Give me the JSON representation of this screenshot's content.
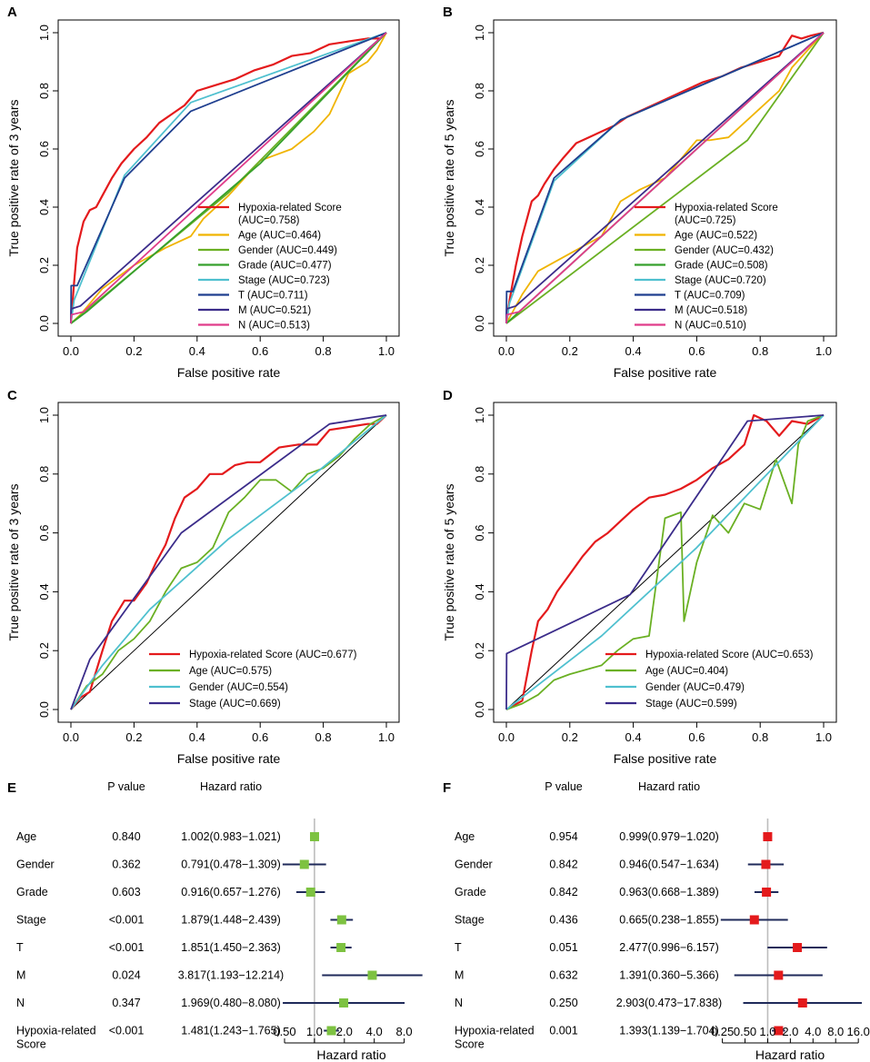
{
  "figure": {
    "panel_labels": [
      "A",
      "B",
      "C",
      "D",
      "E",
      "F"
    ]
  },
  "chart_data": [
    {
      "panel": "A",
      "type": "line",
      "xlabel": "False positive rate",
      "ylabel": "True positive rate of 3 years",
      "xlim": [
        0,
        1
      ],
      "ylim": [
        0,
        1
      ],
      "x_ticks": [
        "0.0",
        "0.2",
        "0.4",
        "0.6",
        "0.8",
        "1.0"
      ],
      "y_ticks": [
        "0.0",
        "0.2",
        "0.4",
        "0.6",
        "0.8",
        "1.0"
      ],
      "legend_position": "bottom-right",
      "series": [
        {
          "name": "Hypoxia-related Score",
          "auc_label": "(AUC=0.758)",
          "color": "#e41a1c",
          "x": [
            0,
            0.01,
            0.02,
            0.04,
            0.06,
            0.08,
            0.1,
            0.13,
            0.16,
            0.2,
            0.24,
            0.28,
            0.32,
            0.36,
            0.4,
            0.46,
            0.52,
            0.58,
            0.64,
            0.7,
            0.76,
            0.82,
            0.88,
            0.94,
            0.98,
            1
          ],
          "y": [
            0,
            0.14,
            0.26,
            0.35,
            0.39,
            0.4,
            0.44,
            0.5,
            0.55,
            0.6,
            0.64,
            0.69,
            0.72,
            0.75,
            0.8,
            0.82,
            0.84,
            0.87,
            0.89,
            0.92,
            0.93,
            0.96,
            0.97,
            0.98,
            0.98,
            1
          ]
        },
        {
          "name": "Age",
          "auc_label": "(AUC=0.464)",
          "color": "#f0b400",
          "x": [
            0,
            0.03,
            0.1,
            0.2,
            0.3,
            0.38,
            0.42,
            0.5,
            0.6,
            0.7,
            0.77,
            0.82,
            0.88,
            0.94,
            0.97,
            1
          ],
          "y": [
            0,
            0.03,
            0.12,
            0.2,
            0.26,
            0.3,
            0.36,
            0.44,
            0.56,
            0.6,
            0.66,
            0.72,
            0.86,
            0.9,
            0.94,
            1
          ]
        },
        {
          "name": "Gender",
          "auc_label": "(AUC=0.449)",
          "color": "#6ab023",
          "x": [
            0,
            0.5,
            1
          ],
          "y": [
            0,
            0.45,
            1
          ]
        },
        {
          "name": "Grade",
          "auc_label": "(AUC=0.477)",
          "color": "#36a02c",
          "x": [
            0,
            0.05,
            0.6,
            1
          ],
          "y": [
            0,
            0.04,
            0.55,
            1
          ]
        },
        {
          "name": "Stage",
          "auc_label": "(AUC=0.723)",
          "color": "#4fc0cf",
          "x": [
            0,
            0.01,
            0.17,
            0.38,
            1
          ],
          "y": [
            0,
            0.08,
            0.51,
            0.76,
            1
          ]
        },
        {
          "name": "T",
          "auc_label": "(AUC=0.711)",
          "color": "#1f3f8f",
          "x": [
            0,
            0.001,
            0.02,
            0.17,
            0.38,
            1
          ],
          "y": [
            0,
            0.13,
            0.13,
            0.5,
            0.73,
            1
          ]
        },
        {
          "name": "M",
          "auc_label": "(AUC=0.521)",
          "color": "#3b2c8a",
          "x": [
            0,
            0.001,
            0.03,
            1
          ],
          "y": [
            0,
            0.05,
            0.06,
            1
          ]
        },
        {
          "name": "N",
          "auc_label": "(AUC=0.513)",
          "color": "#e03c8a",
          "x": [
            0,
            0.002,
            0.04,
            1
          ],
          "y": [
            0,
            0.03,
            0.04,
            1
          ]
        }
      ]
    },
    {
      "panel": "B",
      "type": "line",
      "xlabel": "False positive rate",
      "ylabel": "True positive rate of 5 years",
      "xlim": [
        0,
        1
      ],
      "ylim": [
        0,
        1
      ],
      "x_ticks": [
        "0.0",
        "0.2",
        "0.4",
        "0.6",
        "0.8",
        "1.0"
      ],
      "y_ticks": [
        "0.0",
        "0.2",
        "0.4",
        "0.6",
        "0.8",
        "1.0"
      ],
      "legend_position": "bottom-right",
      "series": [
        {
          "name": "Hypoxia-related Score",
          "auc_label": "(AUC=0.725)",
          "color": "#e41a1c",
          "x": [
            0,
            0.01,
            0.03,
            0.05,
            0.08,
            0.1,
            0.12,
            0.15,
            0.18,
            0.22,
            0.26,
            0.3,
            0.34,
            0.38,
            0.44,
            0.5,
            0.56,
            0.62,
            0.68,
            0.74,
            0.8,
            0.86,
            0.9,
            0.93,
            0.96,
            1
          ],
          "y": [
            0,
            0.08,
            0.2,
            0.3,
            0.42,
            0.44,
            0.48,
            0.53,
            0.57,
            0.62,
            0.64,
            0.66,
            0.68,
            0.71,
            0.74,
            0.77,
            0.8,
            0.83,
            0.85,
            0.88,
            0.9,
            0.92,
            0.99,
            0.98,
            0.99,
            1
          ]
        },
        {
          "name": "Age",
          "auc_label": "(AUC=0.522)",
          "color": "#f0b400",
          "x": [
            0,
            0.05,
            0.1,
            0.2,
            0.3,
            0.36,
            0.42,
            0.5,
            0.6,
            0.64,
            0.7,
            0.8,
            0.86,
            0.9,
            0.95,
            1
          ],
          "y": [
            0,
            0.1,
            0.18,
            0.24,
            0.3,
            0.42,
            0.46,
            0.5,
            0.63,
            0.63,
            0.64,
            0.74,
            0.8,
            0.88,
            0.94,
            1
          ]
        },
        {
          "name": "Gender",
          "auc_label": "(AUC=0.432)",
          "color": "#6ab023",
          "x": [
            0,
            0.76,
            1
          ],
          "y": [
            0,
            0.63,
            1
          ]
        },
        {
          "name": "Grade",
          "auc_label": "(AUC=0.508)",
          "color": "#36a02c",
          "x": [
            0,
            0.05,
            0.6,
            1
          ],
          "y": [
            0,
            0.05,
            0.6,
            1
          ]
        },
        {
          "name": "Stage",
          "auc_label": "(AUC=0.720)",
          "color": "#4fc0cf",
          "x": [
            0,
            0.01,
            0.15,
            0.36,
            1
          ],
          "y": [
            0,
            0.07,
            0.49,
            0.7,
            1
          ]
        },
        {
          "name": "T",
          "auc_label": "(AUC=0.709)",
          "color": "#1f3f8f",
          "x": [
            0,
            0.001,
            0.02,
            0.15,
            0.36,
            1
          ],
          "y": [
            0,
            0.11,
            0.11,
            0.5,
            0.7,
            1
          ]
        },
        {
          "name": "M",
          "auc_label": "(AUC=0.518)",
          "color": "#3b2c8a",
          "x": [
            0,
            0.001,
            0.03,
            1
          ],
          "y": [
            0,
            0.05,
            0.06,
            1
          ]
        },
        {
          "name": "N",
          "auc_label": "(AUC=0.510)",
          "color": "#e03c8a",
          "x": [
            0,
            0.002,
            0.04,
            1
          ],
          "y": [
            0,
            0.03,
            0.04,
            1
          ]
        }
      ]
    },
    {
      "panel": "C",
      "type": "line",
      "xlabel": "False positive rate",
      "ylabel": "True positive rate of 3 years",
      "xlim": [
        0,
        1
      ],
      "ylim": [
        0,
        1
      ],
      "x_ticks": [
        "0.0",
        "0.2",
        "0.4",
        "0.6",
        "0.8",
        "1.0"
      ],
      "y_ticks": [
        "0.0",
        "0.2",
        "0.4",
        "0.6",
        "0.8",
        "1.0"
      ],
      "legend_position": "bottom-right",
      "series": [
        {
          "name": "Hypoxia-related Score",
          "auc_label": "(AUC=0.677)",
          "color": "#e41a1c",
          "x": [
            0,
            0.03,
            0.06,
            0.1,
            0.13,
            0.17,
            0.2,
            0.24,
            0.27,
            0.3,
            0.33,
            0.36,
            0.4,
            0.44,
            0.48,
            0.52,
            0.56,
            0.6,
            0.66,
            0.72,
            0.78,
            0.82,
            0.88,
            0.94,
            0.97,
            1
          ],
          "y": [
            0,
            0.04,
            0.06,
            0.2,
            0.3,
            0.37,
            0.37,
            0.43,
            0.5,
            0.56,
            0.65,
            0.72,
            0.75,
            0.8,
            0.8,
            0.83,
            0.84,
            0.84,
            0.89,
            0.9,
            0.9,
            0.95,
            0.96,
            0.97,
            0.97,
            1
          ]
        },
        {
          "name": "Age",
          "auc_label": "(AUC=0.575)",
          "color": "#6ab023",
          "x": [
            0,
            0.05,
            0.1,
            0.15,
            0.2,
            0.25,
            0.3,
            0.35,
            0.4,
            0.45,
            0.5,
            0.55,
            0.6,
            0.65,
            0.7,
            0.75,
            0.8,
            0.85,
            0.9,
            0.95,
            1
          ],
          "y": [
            0,
            0.08,
            0.12,
            0.2,
            0.24,
            0.3,
            0.4,
            0.48,
            0.5,
            0.55,
            0.67,
            0.72,
            0.78,
            0.78,
            0.74,
            0.8,
            0.82,
            0.86,
            0.92,
            0.97,
            1
          ]
        },
        {
          "name": "Gender",
          "auc_label": "(AUC=0.554)",
          "color": "#4fc0cf",
          "x": [
            0,
            0.1,
            0.25,
            0.5,
            0.75,
            1
          ],
          "y": [
            0,
            0.15,
            0.34,
            0.58,
            0.78,
            1
          ]
        },
        {
          "name": "Stage",
          "auc_label": "(AUC=0.669)",
          "color": "#3b2c8a",
          "x": [
            0,
            0.06,
            0.35,
            0.82,
            1
          ],
          "y": [
            0,
            0.17,
            0.6,
            0.97,
            1
          ]
        }
      ]
    },
    {
      "panel": "D",
      "type": "line",
      "xlabel": "False positive rate",
      "ylabel": "True positive rate of 5 years",
      "xlim": [
        0,
        1
      ],
      "ylim": [
        0,
        1
      ],
      "x_ticks": [
        "0.0",
        "0.2",
        "0.4",
        "0.6",
        "0.8",
        "1.0"
      ],
      "y_ticks": [
        "0.0",
        "0.2",
        "0.4",
        "0.6",
        "0.8",
        "1.0"
      ],
      "legend_position": "bottom-right",
      "series": [
        {
          "name": "Hypoxia-related Score",
          "auc_label": "(AUC=0.653)",
          "color": "#e41a1c",
          "x": [
            0,
            0.05,
            0.08,
            0.1,
            0.13,
            0.16,
            0.2,
            0.24,
            0.28,
            0.32,
            0.36,
            0.4,
            0.45,
            0.5,
            0.55,
            0.6,
            0.65,
            0.7,
            0.75,
            0.78,
            0.82,
            0.86,
            0.9,
            0.95,
            1
          ],
          "y": [
            0,
            0.03,
            0.2,
            0.3,
            0.34,
            0.4,
            0.46,
            0.52,
            0.57,
            0.6,
            0.64,
            0.68,
            0.72,
            0.73,
            0.75,
            0.78,
            0.82,
            0.85,
            0.9,
            1.0,
            0.98,
            0.93,
            0.98,
            0.97,
            1
          ]
        },
        {
          "name": "Age",
          "auc_label": "(AUC=0.404)",
          "color": "#6ab023",
          "x": [
            0,
            0.05,
            0.1,
            0.15,
            0.2,
            0.3,
            0.35,
            0.4,
            0.45,
            0.5,
            0.55,
            0.56,
            0.6,
            0.65,
            0.7,
            0.75,
            0.8,
            0.85,
            0.9,
            0.92,
            0.95,
            1
          ],
          "y": [
            0,
            0.02,
            0.05,
            0.1,
            0.12,
            0.15,
            0.2,
            0.24,
            0.25,
            0.65,
            0.67,
            0.3,
            0.5,
            0.66,
            0.6,
            0.7,
            0.68,
            0.85,
            0.7,
            0.9,
            0.98,
            1
          ]
        },
        {
          "name": "Gender",
          "auc_label": "(AUC=0.479)",
          "color": "#4fc0cf",
          "x": [
            0,
            0.3,
            0.6,
            1
          ],
          "y": [
            0,
            0.25,
            0.55,
            1
          ]
        },
        {
          "name": "Stage",
          "auc_label": "(AUC=0.599)",
          "color": "#3b2c8a",
          "x": [
            0,
            0.001,
            0.39,
            0.76,
            1
          ],
          "y": [
            0,
            0.19,
            0.39,
            0.98,
            1
          ]
        }
      ]
    },
    {
      "panel": "E",
      "type": "forest",
      "xlabel": "Hazard ratio",
      "col_pvalue": "P value",
      "col_hr": "Hazard ratio",
      "x_scale": "log2",
      "xlim": [
        0.45,
        12.3
      ],
      "x_ticks": [
        {
          "label": "0.50",
          "value": 0.5
        },
        {
          "label": "1.0",
          "value": 1
        },
        {
          "label": "2.0",
          "value": 2
        },
        {
          "label": "4.0",
          "value": 4
        },
        {
          "label": "8.0",
          "value": 8
        }
      ],
      "point_color": "#7dc241",
      "line_color": "#1f2a5a",
      "ref_value": 1,
      "rows": [
        {
          "label": "Age",
          "p": "0.840",
          "hr_text": "1.002(0.983−1.021)",
          "hr": 1.002,
          "lo": 0.983,
          "hi": 1.021
        },
        {
          "label": "Gender",
          "p": "0.362",
          "hr_text": "0.791(0.478−1.309)",
          "hr": 0.791,
          "lo": 0.478,
          "hi": 1.309
        },
        {
          "label": "Grade",
          "p": "0.603",
          "hr_text": "0.916(0.657−1.276)",
          "hr": 0.916,
          "lo": 0.657,
          "hi": 1.276
        },
        {
          "label": "Stage",
          "p": "<0.001",
          "hr_text": "1.879(1.448−2.439)",
          "hr": 1.879,
          "lo": 1.448,
          "hi": 2.439
        },
        {
          "label": "T",
          "p": "<0.001",
          "hr_text": "1.851(1.450−2.363)",
          "hr": 1.851,
          "lo": 1.45,
          "hi": 2.363
        },
        {
          "label": "M",
          "p": "0.024",
          "hr_text": "3.817(1.193−12.214)",
          "hr": 3.817,
          "lo": 1.193,
          "hi": 12.214
        },
        {
          "label": "N",
          "p": "0.347",
          "hr_text": "1.969(0.480−8.080)",
          "hr": 1.969,
          "lo": 0.48,
          "hi": 8.08
        },
        {
          "label": "Hypoxia-related",
          "label2": "Score",
          "p": "<0.001",
          "hr_text": "1.481(1.243−1.765)",
          "hr": 1.481,
          "lo": 1.243,
          "hi": 1.765
        }
      ]
    },
    {
      "panel": "F",
      "type": "forest",
      "xlabel": "Hazard ratio",
      "col_pvalue": "P value",
      "col_hr": "Hazard ratio",
      "x_scale": "log2",
      "xlim": [
        0.22,
        17.8
      ],
      "x_ticks": [
        {
          "label": "0.25",
          "value": 0.25
        },
        {
          "label": "0.50",
          "value": 0.5
        },
        {
          "label": "1.0",
          "value": 1
        },
        {
          "label": "2.0",
          "value": 2
        },
        {
          "label": "4.0",
          "value": 4
        },
        {
          "label": "8.0",
          "value": 8
        },
        {
          "label": "16.0",
          "value": 16
        }
      ],
      "point_color": "#e41a1c",
      "line_color": "#1f2a5a",
      "ref_value": 1,
      "rows": [
        {
          "label": "Age",
          "p": "0.954",
          "hr_text": "0.999(0.979−1.020)",
          "hr": 0.999,
          "lo": 0.979,
          "hi": 1.02
        },
        {
          "label": "Gender",
          "p": "0.842",
          "hr_text": "0.946(0.547−1.634)",
          "hr": 0.946,
          "lo": 0.547,
          "hi": 1.634
        },
        {
          "label": "Grade",
          "p": "0.842",
          "hr_text": "0.963(0.668−1.389)",
          "hr": 0.963,
          "lo": 0.668,
          "hi": 1.389
        },
        {
          "label": "Stage",
          "p": "0.436",
          "hr_text": "0.665(0.238−1.855)",
          "hr": 0.665,
          "lo": 0.238,
          "hi": 1.855
        },
        {
          "label": "T",
          "p": "0.051",
          "hr_text": "2.477(0.996−6.157)",
          "hr": 2.477,
          "lo": 0.996,
          "hi": 6.157
        },
        {
          "label": "M",
          "p": "0.632",
          "hr_text": "1.391(0.360−5.366)",
          "hr": 1.391,
          "lo": 0.36,
          "hi": 5.366
        },
        {
          "label": "N",
          "p": "0.250",
          "hr_text": "2.903(0.473−17.838)",
          "hr": 2.903,
          "lo": 0.473,
          "hi": 17.838
        },
        {
          "label": "Hypoxia-related",
          "label2": "Score",
          "p": "0.001",
          "hr_text": "1.393(1.139−1.704)",
          "hr": 1.393,
          "lo": 1.139,
          "hi": 1.704
        }
      ]
    }
  ]
}
